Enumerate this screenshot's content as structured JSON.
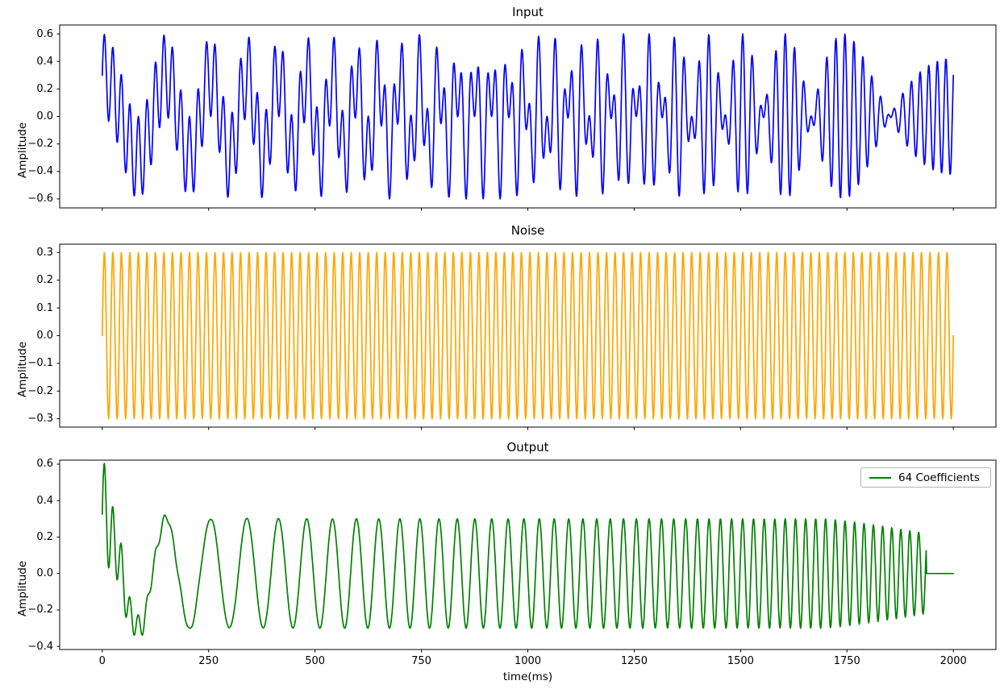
{
  "figure": {
    "background": "#ffffff",
    "text_color": "#000000",
    "spine_color": "#000000"
  },
  "chart_data": {
    "type": "line",
    "xlabel": "time(ms)",
    "x_unit": "ms",
    "x_range_ms": [
      0,
      2000
    ],
    "xlim": [
      -100,
      2100
    ],
    "xticks": [
      0,
      250,
      500,
      750,
      1000,
      1250,
      1500,
      1750,
      2000
    ],
    "sampling_step_ms": 1,
    "signal_model": {
      "signal": {
        "kind": "linear_chirp_cosine",
        "amplitude": 0.3,
        "f0_hz": 5,
        "f1_hz": 50,
        "duration_s": 2
      },
      "noise": {
        "kind": "sine",
        "amplitude": 0.3,
        "freq_hz": 50,
        "phase": 0
      },
      "adaptive_filter": {
        "num_coefficients": 64,
        "output_zero_after_ms": 1936,
        "initial_leak": {
          "amplitude": 0.3,
          "decay_ms": 55,
          "freq_hz": 50
        },
        "adaptation_wobble": {
          "amplitude": 0.035,
          "decay_ms": 130,
          "freq_hz": 27,
          "phase_rad": 0.8
        },
        "end_taper": {
          "start_ms": 1700,
          "drop": 0.08,
          "exponent": 1.2
        }
      }
    },
    "subplots": [
      {
        "id": "input",
        "title": "Input",
        "ylabel": "Amplitude",
        "series_model": "signal_plus_noise",
        "color": "#0000ff",
        "ylim": [
          -0.665,
          0.665
        ],
        "yticks": [
          0.6,
          0.4,
          0.2,
          0.0,
          -0.2,
          -0.4,
          -0.6
        ]
      },
      {
        "id": "noise",
        "title": "Noise",
        "ylabel": "Amplitude",
        "series_model": "noise_only",
        "color": "#ffa500",
        "ylim": [
          -0.33,
          0.33
        ],
        "yticks": [
          0.3,
          0.2,
          0.1,
          0.0,
          -0.1,
          -0.2,
          -0.3
        ]
      },
      {
        "id": "output",
        "title": "Output",
        "ylabel": "Amplitude",
        "series_model": "filter_output",
        "color": "#008000",
        "ylim": [
          -0.417,
          0.622
        ],
        "yticks": [
          0.6,
          0.4,
          0.2,
          0.0,
          -0.2,
          -0.4
        ],
        "legend": {
          "label": "64 Coefficients",
          "location": "upper right"
        }
      }
    ]
  }
}
